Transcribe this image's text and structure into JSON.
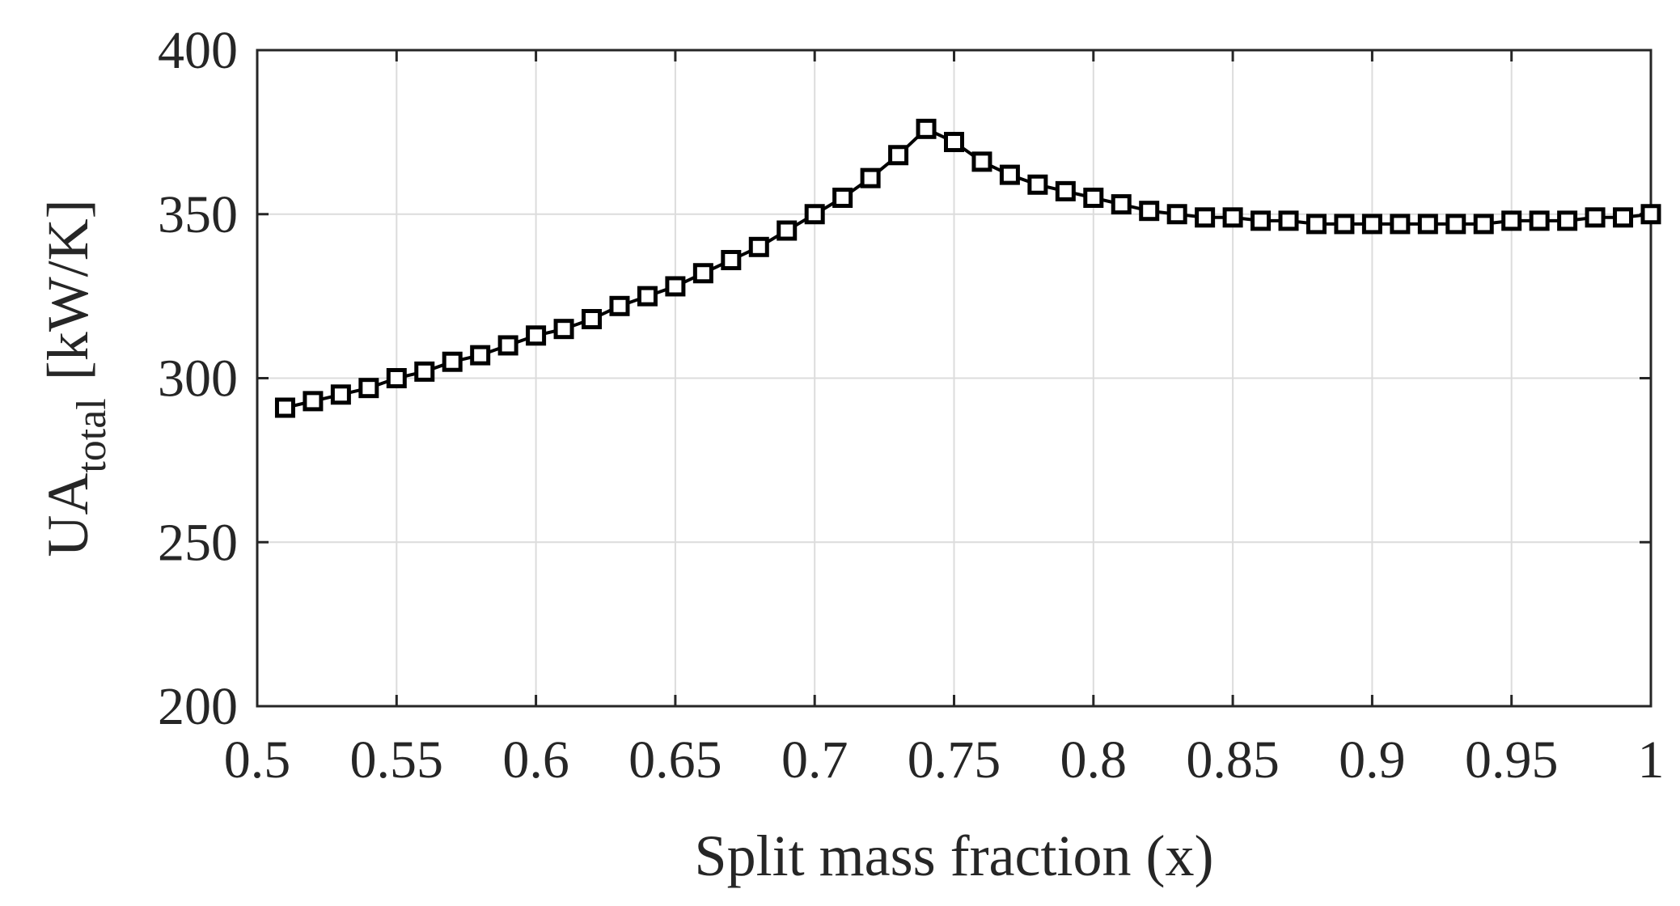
{
  "chart_data": {
    "type": "line",
    "title": "",
    "xlabel": "Split mass fraction (x)",
    "ylabel": {
      "main": "UA",
      "subscript": "total",
      "units": "[kW/K]"
    },
    "xlim": [
      0.5,
      1
    ],
    "ylim": [
      200,
      400
    ],
    "xticks": [
      0.5,
      0.55,
      0.6,
      0.65,
      0.7,
      0.75,
      0.8,
      0.85,
      0.9,
      0.95,
      1
    ],
    "xtick_labels": [
      "0.5",
      "0.55",
      "0.6",
      "0.65",
      "0.7",
      "0.75",
      "0.8",
      "0.85",
      "0.9",
      "0.95",
      "1"
    ],
    "yticks": [
      200,
      250,
      300,
      350,
      400
    ],
    "ytick_labels": [
      "200",
      "250",
      "300",
      "350",
      "400"
    ],
    "grid": true,
    "marker": "square",
    "series": [
      {
        "name": "UA_total",
        "x": [
          0.51,
          0.52,
          0.53,
          0.54,
          0.55,
          0.56,
          0.57,
          0.58,
          0.59,
          0.6,
          0.61,
          0.62,
          0.63,
          0.64,
          0.65,
          0.66,
          0.67,
          0.68,
          0.69,
          0.7,
          0.71,
          0.72,
          0.73,
          0.74,
          0.75,
          0.76,
          0.77,
          0.78,
          0.79,
          0.8,
          0.81,
          0.82,
          0.83,
          0.84,
          0.85,
          0.86,
          0.87,
          0.88,
          0.89,
          0.9,
          0.91,
          0.92,
          0.93,
          0.94,
          0.95,
          0.96,
          0.97,
          0.98,
          0.99,
          1.0
        ],
        "y": [
          291,
          293,
          295,
          297,
          300,
          302,
          305,
          307,
          310,
          313,
          315,
          318,
          322,
          325,
          328,
          332,
          336,
          340,
          345,
          350,
          355,
          361,
          368,
          376,
          372,
          366,
          362,
          359,
          357,
          355,
          353,
          351,
          350,
          349,
          349,
          348,
          348,
          347,
          347,
          347,
          347,
          347,
          347,
          347,
          348,
          348,
          348,
          349,
          349,
          350
        ]
      }
    ]
  }
}
